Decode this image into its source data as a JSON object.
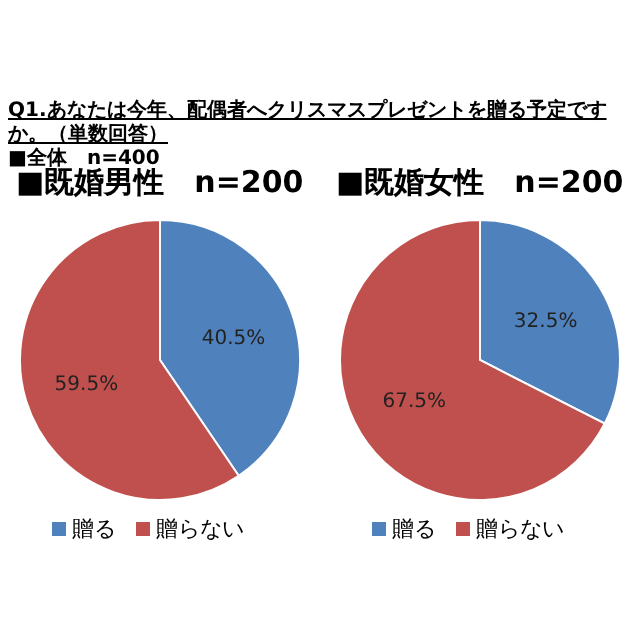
{
  "chart_data": [
    {
      "type": "pie",
      "title": "■既婚男性　n=200",
      "annotations": [
        "Q1.あなたは今年、配偶者へクリスマスプレゼントを贈る予定ですか。（単数回答）",
        "■全体　n=400"
      ],
      "categories": [
        "贈る",
        "贈らない"
      ],
      "values": [
        40.5,
        59.5
      ],
      "value_labels": [
        "40.5%",
        "59.5%"
      ],
      "colors": [
        "#4f81bd",
        "#c0504d"
      ],
      "legend": "bottom"
    },
    {
      "type": "pie",
      "title": "■既婚女性　n=200",
      "categories": [
        "贈る",
        "贈らない"
      ],
      "values": [
        32.5,
        67.5
      ],
      "value_labels": [
        "32.5%",
        "67.5%"
      ],
      "colors": [
        "#4f81bd",
        "#c0504d"
      ],
      "legend": "bottom"
    }
  ]
}
